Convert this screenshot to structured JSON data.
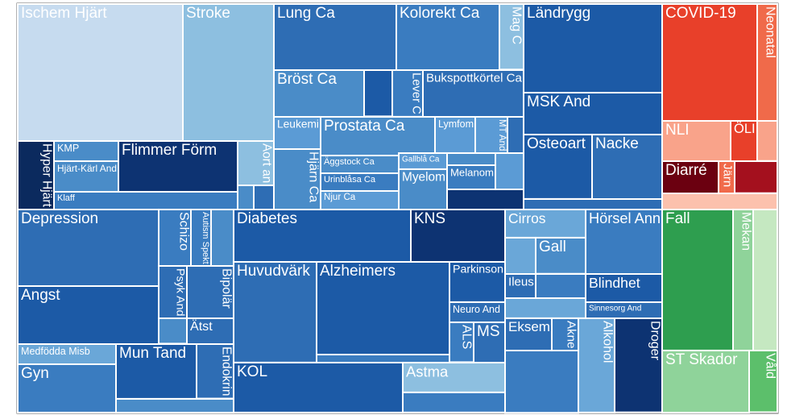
{
  "chart_data": {
    "type": "treemap",
    "tiles": [
      {
        "label": "Ischem Hjärt",
        "value": 7.29,
        "color": "#c6dbef"
      },
      {
        "label": "Stroke",
        "value": 4.02,
        "color": "#8dbfe0"
      },
      {
        "label": "Hyper Hjärt",
        "value": 0.8,
        "color": "#0b2a5e"
      },
      {
        "label": "KMP",
        "value": 0.42,
        "color": "#4a8cc8"
      },
      {
        "label": "Hjärt-Kärl And",
        "value": 0.64,
        "color": "#4a8cc8"
      },
      {
        "label": "Flimmer Förm",
        "value": 1.95,
        "color": "#0d3372"
      },
      {
        "label": "Aort an",
        "value": 0.52,
        "color": "#8dbfe0"
      },
      {
        "label": "Klaff",
        "value": 1.05,
        "color": "#3a7cc0"
      },
      {
        "label": null,
        "value": 0.13,
        "color": "#4a8cc8"
      },
      {
        "label": null,
        "value": 0.16,
        "color": "#2e6db4"
      },
      {
        "label": "Lung Ca",
        "value": 2.61,
        "color": "#2e6db4"
      },
      {
        "label": "Kolorekt Ca",
        "value": 2.2,
        "color": "#3a7cc0"
      },
      {
        "label": "Mag C",
        "value": 0.51,
        "color": "#8dbfe0"
      },
      {
        "label": "Bröst Ca",
        "value": 1.36,
        "color": "#4a8cc8"
      },
      {
        "label": null,
        "value": 0.42,
        "color": "#1c5aa6"
      },
      {
        "label": "Lever C",
        "value": 0.46,
        "color": "#3a7cc0"
      },
      {
        "label": "Bukspottkörtel Ca",
        "value": 1.52,
        "color": "#2e6db4"
      },
      {
        "label": "Leukemi",
        "value": 0.49,
        "color": "#5b9bd5"
      },
      {
        "label": "Prostata Ca",
        "value": 1.43,
        "color": "#4a8cc8"
      },
      {
        "label": "Lymfom",
        "value": 0.47,
        "color": "#5b9bd5"
      },
      {
        "label": "MT And",
        "value": 0.38,
        "color": "#5b9bd5"
      },
      {
        "label": null,
        "value": 0.19,
        "color": "#2e6db4"
      },
      {
        "label": "Hjärn Ca",
        "value": 0.91,
        "color": "#4a8cc8"
      },
      {
        "label": "Äggstock Ca",
        "value": 0.45,
        "color": "#4a8cc8"
      },
      {
        "label": "Urinblåsa Ca",
        "value": 0.45,
        "color": "#3a7cc0"
      },
      {
        "label": "Njur Ca",
        "value": 0.47,
        "color": "#5b9bd5"
      },
      {
        "label": "Gallblå Ca",
        "value": 0.25,
        "color": "#5b9bd5"
      },
      {
        "label": null,
        "value": 0.19,
        "color": "#4a8cc8"
      },
      {
        "label": "Melanom",
        "value": 0.38,
        "color": "#3a7cc0"
      },
      {
        "label": "Myelom",
        "value": 0.63,
        "color": "#4a8cc8"
      },
      {
        "label": null,
        "value": 0.33,
        "color": "#5b9bd5"
      },
      {
        "label": null,
        "value": 0.5,
        "color": "#0d3372"
      },
      {
        "label": "Ländrygg",
        "value": 3.96,
        "color": "#1c5aa6"
      },
      {
        "label": "MSK And",
        "value": 1.87,
        "color": "#1c5aa6"
      },
      {
        "label": "Osteoart",
        "value": 1.42,
        "color": "#1c5aa6"
      },
      {
        "label": "Nacke",
        "value": 1.46,
        "color": "#2e6db4"
      },
      {
        "label": null,
        "value": 0.47,
        "color": "#2e6db4"
      },
      {
        "label": "COVID-19",
        "value": 3.58,
        "color": "#e8402a"
      },
      {
        "label": "Neonatal",
        "value": 0.76,
        "color": "#f06a4a"
      },
      {
        "label": "NLI",
        "value": 0.89,
        "color": "#f9a38a"
      },
      {
        "label": "ÖLI",
        "value": 0.35,
        "color": "#e8402a"
      },
      {
        "label": null,
        "value": 0.26,
        "color": "#f9a38a"
      },
      {
        "label": "Diarré",
        "value": 0.59,
        "color": "#6b0010"
      },
      {
        "label": "Järn",
        "value": 0.17,
        "color": "#f06a4a"
      },
      {
        "label": null,
        "value": 0.44,
        "color": "#a4101e"
      },
      {
        "label": null,
        "value": 0.6,
        "color": "#fcc1ad"
      },
      {
        "label": "Depression",
        "value": 3.48,
        "color": "#2e6db4"
      },
      {
        "label": "Angst",
        "value": 2.64,
        "color": "#1c5aa6"
      },
      {
        "label": "Schizo",
        "value": 0.59,
        "color": "#3a7cc0"
      },
      {
        "label": "Autism Spekt",
        "value": 0.37,
        "color": "#3a7cc0"
      },
      {
        "label": "Psyk And",
        "value": 0.48,
        "color": "#2e6db4"
      },
      {
        "label": "Bipolär",
        "value": 0.79,
        "color": "#2e6db4"
      },
      {
        "label": null,
        "value": 0.23,
        "color": "#4a8cc8"
      },
      {
        "label": "Ätst",
        "value": 0.39,
        "color": "#2e6db4"
      },
      {
        "label": null,
        "value": 0.41,
        "color": "#4a8cc8"
      },
      {
        "label": "Medfödda Misb",
        "value": 0.64,
        "color": "#6aa7d8"
      },
      {
        "label": "Gyn",
        "value": 1.53,
        "color": "#3a7cc0"
      },
      {
        "label": "Mun Tand",
        "value": 1.42,
        "color": "#1c5aa6"
      },
      {
        "label": "Endokrin",
        "value": 0.65,
        "color": "#2e6db4"
      },
      {
        "label": null,
        "value": 0.52,
        "color": "#4a8cc8"
      },
      {
        "label": "Diabetes",
        "value": 2.99,
        "color": "#1c5aa6"
      },
      {
        "label": "KNS",
        "value": 1.59,
        "color": "#0d3372"
      },
      {
        "label": "Huvudvärk",
        "value": 2.69,
        "color": "#2e6db4"
      },
      {
        "label": "Alzheimers",
        "value": 3.97,
        "color": "#1c5aa6"
      },
      {
        "label": null,
        "value": 0.35,
        "color": "#3a7cc0"
      },
      {
        "label": "Parkinson",
        "value": 0.72,
        "color": "#1c5aa6"
      },
      {
        "label": "Neuro And",
        "value": 0.36,
        "color": "#2e6db4"
      },
      {
        "label": "ALS",
        "value": 0.31,
        "color": "#3a7cc0"
      },
      {
        "label": "MS",
        "value": 0.41,
        "color": "#2e6db4"
      },
      {
        "label": "KOL",
        "value": 2.72,
        "color": "#1c5aa6"
      },
      {
        "label": "Astma",
        "value": 0.98,
        "color": "#8dbfe0"
      },
      {
        "label": null,
        "value": 0.66,
        "color": "#3a7cc0"
      },
      {
        "label": "Cirros",
        "value": 0.73,
        "color": "#6aa7d8"
      },
      {
        "label": "Gall",
        "value": 0.58,
        "color": "#4a8cc8"
      },
      {
        "label": null,
        "value": 0.36,
        "color": "#6aa7d8"
      },
      {
        "label": "Ileus",
        "value": 0.24,
        "color": "#2e6db4"
      },
      {
        "label": null,
        "value": 0.39,
        "color": "#3a7cc0"
      },
      {
        "label": null,
        "value": 0.52,
        "color": "#6aa7d8"
      },
      {
        "label": "Hörsel Ann",
        "value": 1.59,
        "color": "#3a7cc0"
      },
      {
        "label": "Blindhet",
        "value": 0.7,
        "color": "#1c5aa6"
      },
      {
        "label": "Sinnesorg And",
        "value": 0.4,
        "color": "#2e6db4"
      },
      {
        "label": "Eksem",
        "value": 0.49,
        "color": "#2e6db4"
      },
      {
        "label": "Akne",
        "value": 0.28,
        "color": "#3a7cc0"
      },
      {
        "label": null,
        "value": 1.47,
        "color": "#3a7cc0"
      },
      {
        "label": "Alkohol",
        "value": 1.1,
        "color": "#6aa7d8"
      },
      {
        "label": "Droger",
        "value": 1.44,
        "color": "#0d3372"
      },
      {
        "label": "Fall",
        "value": 3.22,
        "color": "#2e9e4f"
      },
      {
        "label": "Mekan",
        "value": 0.92,
        "color": "#8fd39a"
      },
      {
        "label": null,
        "value": 1.1,
        "color": "#c5e8c1"
      },
      {
        "label": "ST Skador",
        "value": 1.74,
        "color": "#8fd39a"
      },
      {
        "label": "Våld",
        "value": 0.56,
        "color": "#5cbf6b"
      }
    ]
  }
}
